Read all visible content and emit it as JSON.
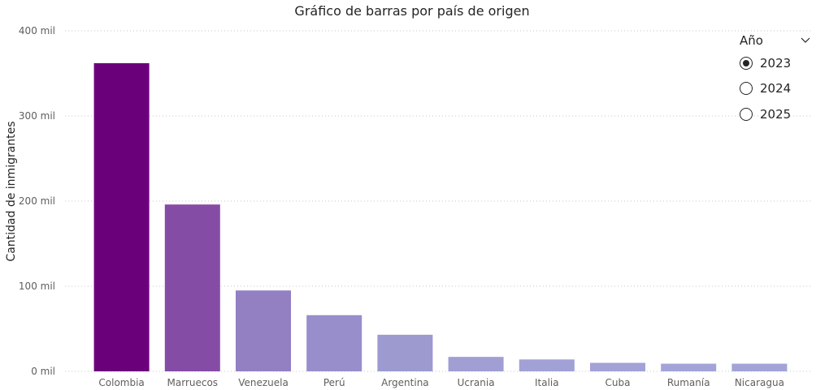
{
  "chart_data": {
    "type": "bar",
    "title": "Gráfico de barras por país de origen",
    "ylabel": "Cantidad de inmigrantes",
    "xlabel": "",
    "categories": [
      "Colombia",
      "Marruecos",
      "Venezuela",
      "Perú",
      "Argentina",
      "Ucrania",
      "Italia",
      "Cuba",
      "Rumanía",
      "Nicaragua"
    ],
    "values": [
      362000,
      196000,
      95000,
      66000,
      43000,
      17000,
      14000,
      10000,
      9000,
      9000
    ],
    "colors": [
      "#6b007b",
      "#854ca5",
      "#9380c3",
      "#988ecb",
      "#9c9acf",
      "#a09ed3",
      "#a1a1d6",
      "#a2a2d7",
      "#a3a3d8",
      "#a3a3d8"
    ],
    "ylim": [
      0,
      400000
    ],
    "yticks": [
      0,
      100000,
      200000,
      300000,
      400000
    ],
    "ytick_labels": [
      "0 mil",
      "100 mil",
      "200 mil",
      "300 mil",
      "400 mil"
    ],
    "grid": true,
    "legend": "none"
  },
  "slicer": {
    "title": "Año",
    "icon": "chevron-down-icon",
    "options": [
      {
        "label": "2023",
        "selected": true
      },
      {
        "label": "2024",
        "selected": false
      },
      {
        "label": "2025",
        "selected": false
      }
    ]
  }
}
